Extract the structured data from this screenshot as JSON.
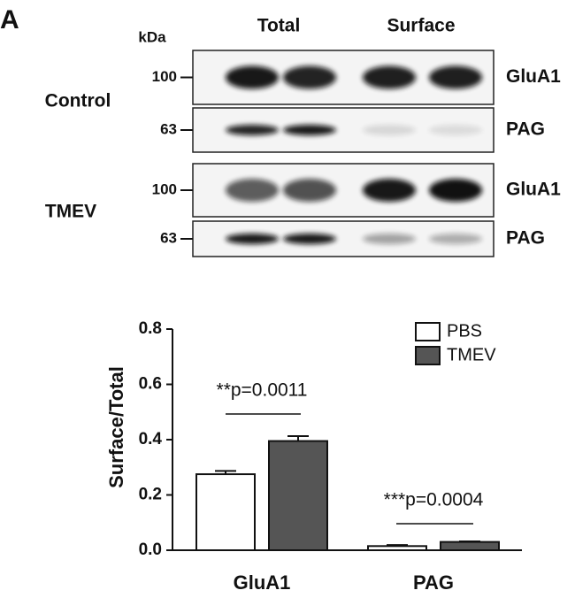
{
  "panel_label": "A",
  "blot": {
    "kda_label": "kDa",
    "column_labels": [
      "Total",
      "Surface"
    ],
    "groups": [
      {
        "name": "Control",
        "rows": [
          {
            "marker": "100",
            "protein": "GluA1"
          },
          {
            "marker": "63",
            "protein": "PAG"
          }
        ]
      },
      {
        "name": "TMEV",
        "rows": [
          {
            "marker": "100",
            "protein": "GluA1"
          },
          {
            "marker": "63",
            "protein": "PAG"
          }
        ]
      }
    ]
  },
  "chart_data": {
    "type": "bar",
    "y_label": "Surface/Total",
    "categories": [
      "GluA1",
      "PAG"
    ],
    "series": [
      {
        "name": "PBS",
        "color": "#ffffff",
        "values": [
          0.275,
          0.015
        ],
        "errors": [
          0.012,
          0.004
        ]
      },
      {
        "name": "TMEV",
        "color": "#555555",
        "values": [
          0.395,
          0.03
        ],
        "errors": [
          0.018,
          0.002
        ]
      }
    ],
    "ylim": [
      0,
      0.8
    ],
    "yticks": [
      {
        "value": 0,
        "label": "0.0"
      },
      {
        "value": 0.2,
        "label": "0.2"
      },
      {
        "value": 0.4,
        "label": "0.4"
      },
      {
        "value": 0.6,
        "label": "0.6"
      },
      {
        "value": 0.8,
        "label": "0.8"
      }
    ],
    "annotations": [
      "**p=0.0011",
      "***p=0.0004"
    ],
    "legend": "upper right"
  }
}
